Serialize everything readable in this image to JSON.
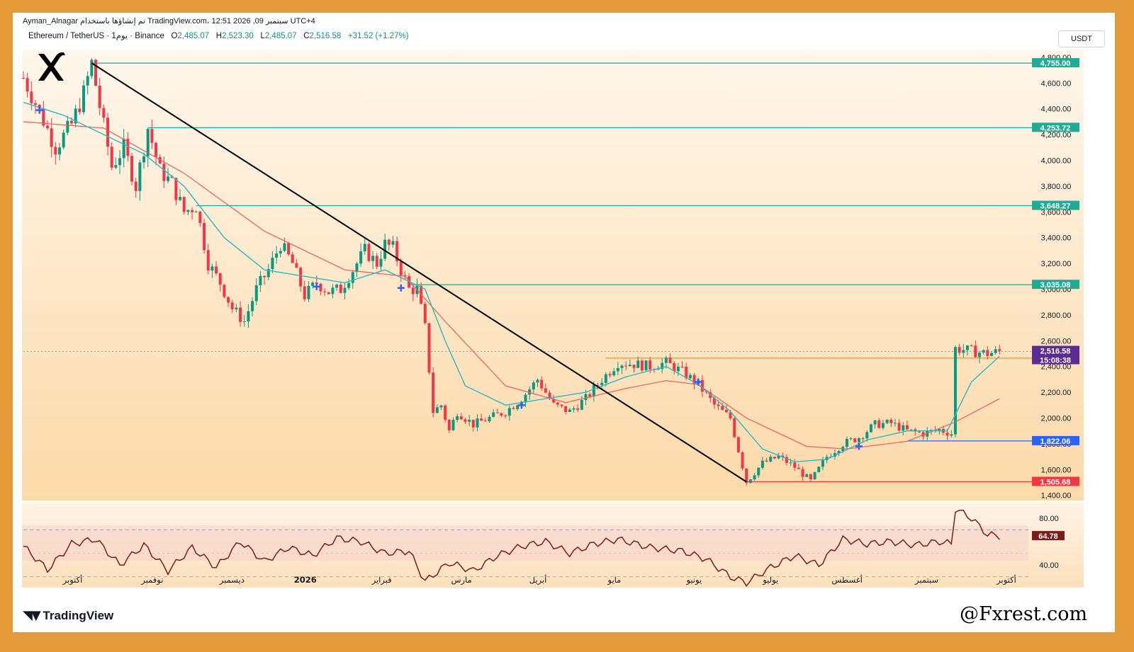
{
  "header": {
    "author": "Ayman_Alnagar",
    "published_text": "تم إنشاؤها باستخدام TradingView.com، 12:51 2026 ,09 سبتمبر UTC+4"
  },
  "symbol_bar": {
    "symbol": "Ethereum / TetherUS · 1يوم · Binance",
    "open_label": "O",
    "open": "2,485.07",
    "high_label": "H",
    "high": "2,523.30",
    "low_label": "L",
    "low": "2,485.07",
    "close_label": "C",
    "close": "2,516.58",
    "change": "+31.52 (+1.27%)"
  },
  "currency": "USDT",
  "branding": {
    "tradingview": "TradingView",
    "watermark": "@Fxrest.com"
  },
  "colors": {
    "up": "#089981",
    "down": "#f23645",
    "level_line": "#22ab94",
    "support_orange": "#f7931a",
    "support_blue": "#2962ff",
    "support_red": "#f23645",
    "ma_fast": "#2ab8c6",
    "ma_slow": "#f05a5a",
    "rsi_line": "#7b1b1b",
    "frame": "#e59a3a"
  },
  "chart_data": [
    {
      "type": "candlestick",
      "instrument": "ETH/USDT",
      "timeframe": "1D",
      "x_ticks": [
        "أكتوبر",
        "نوفمبر",
        "ديسمبر",
        "2026",
        "فبراير",
        "مارس",
        "أبريل",
        "مايو",
        "يونيو",
        "يوليو",
        "أغسطس",
        "سبتمبر",
        "أكتوبر"
      ],
      "y_ticks": [
        4800,
        4600,
        4400,
        4200,
        4000,
        3800,
        3600,
        3400,
        3200,
        3000,
        2800,
        2600,
        2400,
        2200,
        2000,
        1800,
        1600,
        1400
      ],
      "y_tick_labels": [
        "4,800.00",
        "4,600.00",
        "4,400.00",
        "4,200.00",
        "4,000.00",
        "3,800.00",
        "3,600.00",
        "3,400.00",
        "3,200.00",
        "3,000.00",
        "2,800.00",
        "2,600.00",
        "2,400.00",
        "2,200.00",
        "2,000.00",
        "1,800.00",
        "1,600.00",
        "1,400.00"
      ],
      "ylim": [
        1360,
        4860
      ],
      "close_path": [
        [
          0,
          4640
        ],
        [
          4,
          4380
        ],
        [
          8,
          4100
        ],
        [
          12,
          4280
        ],
        [
          15,
          4520
        ],
        [
          17,
          4755
        ],
        [
          19,
          4420
        ],
        [
          22,
          3950
        ],
        [
          25,
          4100
        ],
        [
          28,
          3800
        ],
        [
          31,
          4253
        ],
        [
          34,
          3920
        ],
        [
          37,
          3820
        ],
        [
          40,
          3600
        ],
        [
          43,
          3648
        ],
        [
          46,
          3200
        ],
        [
          49,
          3050
        ],
        [
          52,
          2850
        ],
        [
          55,
          2750
        ],
        [
          58,
          3000
        ],
        [
          61,
          3150
        ],
        [
          64,
          3350
        ],
        [
          67,
          3200
        ],
        [
          70,
          2950
        ],
        [
          73,
          3050
        ],
        [
          76,
          2980
        ],
        [
          79,
          3000
        ],
        [
          82,
          3150
        ],
        [
          85,
          3300
        ],
        [
          88,
          3200
        ],
        [
          90,
          3350
        ],
        [
          92,
          3320
        ],
        [
          94,
          3150
        ],
        [
          96,
          3000
        ],
        [
          98,
          3000
        ],
        [
          100,
          2700
        ],
        [
          102,
          2050
        ],
        [
          104,
          2100
        ],
        [
          106,
          1900
        ],
        [
          108,
          2050
        ],
        [
          112,
          1950
        ],
        [
          116,
          2000
        ],
        [
          120,
          2050
        ],
        [
          124,
          2150
        ],
        [
          128,
          2300
        ],
        [
          132,
          2100
        ],
        [
          136,
          2050
        ],
        [
          140,
          2150
        ],
        [
          144,
          2300
        ],
        [
          148,
          2430
        ],
        [
          152,
          2420
        ],
        [
          156,
          2400
        ],
        [
          160,
          2430
        ],
        [
          164,
          2360
        ],
        [
          168,
          2260
        ],
        [
          172,
          2100
        ],
        [
          176,
          2000
        ],
        [
          178,
          1750
        ],
        [
          180,
          1505
        ],
        [
          184,
          1650
        ],
        [
          188,
          1700
        ],
        [
          192,
          1620
        ],
        [
          196,
          1510
        ],
        [
          200,
          1700
        ],
        [
          204,
          1800
        ],
        [
          208,
          1850
        ],
        [
          212,
          1950
        ],
        [
          216,
          1960
        ],
        [
          220,
          1900
        ],
        [
          224,
          1880
        ],
        [
          228,
          1910
        ],
        [
          231,
          1880
        ],
        [
          232,
          2540
        ],
        [
          236,
          2520
        ],
        [
          240,
          2500
        ],
        [
          243,
          2516.58
        ]
      ],
      "ma_fast_path": [
        [
          0,
          4450
        ],
        [
          10,
          4350
        ],
        [
          20,
          4200
        ],
        [
          30,
          4050
        ],
        [
          40,
          3800
        ],
        [
          50,
          3400
        ],
        [
          60,
          3150
        ],
        [
          70,
          3100
        ],
        [
          80,
          3050
        ],
        [
          90,
          3150
        ],
        [
          100,
          3000
        ],
        [
          105,
          2600
        ],
        [
          110,
          2250
        ],
        [
          120,
          2100
        ],
        [
          130,
          2150
        ],
        [
          140,
          2200
        ],
        [
          150,
          2320
        ],
        [
          160,
          2400
        ],
        [
          168,
          2260
        ],
        [
          176,
          2050
        ],
        [
          184,
          1760
        ],
        [
          192,
          1660
        ],
        [
          200,
          1680
        ],
        [
          210,
          1830
        ],
        [
          220,
          1900
        ],
        [
          230,
          1900
        ],
        [
          236,
          2280
        ],
        [
          243,
          2480
        ]
      ],
      "ma_slow_path": [
        [
          0,
          4300
        ],
        [
          20,
          4250
        ],
        [
          40,
          3900
        ],
        [
          60,
          3450
        ],
        [
          80,
          3150
        ],
        [
          95,
          3100
        ],
        [
          105,
          2750
        ],
        [
          120,
          2250
        ],
        [
          135,
          2120
        ],
        [
          150,
          2230
        ],
        [
          160,
          2290
        ],
        [
          168,
          2260
        ],
        [
          180,
          2000
        ],
        [
          195,
          1780
        ],
        [
          205,
          1760
        ],
        [
          220,
          1820
        ],
        [
          232,
          1970
        ],
        [
          243,
          2150
        ]
      ],
      "trendline": {
        "from": [
          17,
          4755
        ],
        "to": [
          180,
          1505
        ]
      },
      "levels": [
        {
          "price": 4755.0,
          "label": "4,755.00",
          "kind": "resistance"
        },
        {
          "price": 4253.72,
          "label": "4,253.72",
          "kind": "resistance"
        },
        {
          "price": 3648.27,
          "label": "3,648.27",
          "kind": "resistance"
        },
        {
          "price": 3035.08,
          "label": "3,035.08",
          "kind": "resistance"
        },
        {
          "price": 2464.91,
          "label": "2,464.91",
          "kind": "support-orange"
        },
        {
          "price": 1822.06,
          "label": "1,822.06",
          "kind": "support-blue"
        },
        {
          "price": 1505.68,
          "label": "1,505.68",
          "kind": "support-red"
        }
      ],
      "current_price": {
        "price": 2516.58,
        "label": "2,516.58",
        "countdown": "15:08:38"
      },
      "cross_markers": [
        [
          4,
          4390
        ],
        [
          73,
          3020
        ],
        [
          94,
          3010
        ],
        [
          124,
          2100
        ],
        [
          168,
          2280
        ],
        [
          208,
          1780
        ]
      ]
    },
    {
      "type": "line",
      "name": "RSI",
      "y_ticks": [
        80.0,
        40.0
      ],
      "y_tick_labels": [
        "80.00",
        "40.00"
      ],
      "bands": [
        70,
        30
      ],
      "ylim": [
        22,
        92
      ],
      "current_value": {
        "value": 64.78,
        "label": "64.78"
      },
      "values_path": [
        [
          0,
          56
        ],
        [
          6,
          36
        ],
        [
          12,
          58
        ],
        [
          18,
          62
        ],
        [
          24,
          40
        ],
        [
          30,
          57
        ],
        [
          36,
          35
        ],
        [
          42,
          55
        ],
        [
          48,
          38
        ],
        [
          54,
          60
        ],
        [
          60,
          43
        ],
        [
          66,
          55
        ],
        [
          72,
          48
        ],
        [
          78,
          63
        ],
        [
          84,
          60
        ],
        [
          90,
          50
        ],
        [
          96,
          52
        ],
        [
          100,
          26
        ],
        [
          106,
          42
        ],
        [
          112,
          35
        ],
        [
          118,
          48
        ],
        [
          124,
          56
        ],
        [
          130,
          60
        ],
        [
          136,
          50
        ],
        [
          142,
          58
        ],
        [
          148,
          62
        ],
        [
          156,
          55
        ],
        [
          164,
          52
        ],
        [
          170,
          45
        ],
        [
          176,
          30
        ],
        [
          180,
          25
        ],
        [
          186,
          38
        ],
        [
          192,
          48
        ],
        [
          198,
          40
        ],
        [
          204,
          62
        ],
        [
          210,
          58
        ],
        [
          216,
          60
        ],
        [
          222,
          57
        ],
        [
          228,
          60
        ],
        [
          231,
          58
        ],
        [
          232,
          88
        ],
        [
          236,
          80
        ],
        [
          240,
          66
        ],
        [
          243,
          64.78
        ]
      ]
    }
  ]
}
